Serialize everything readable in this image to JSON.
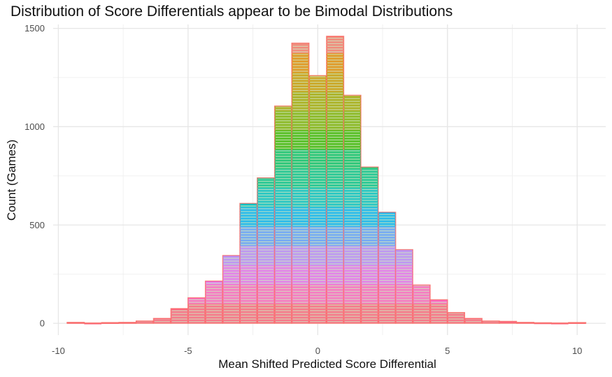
{
  "chart_data": {
    "type": "bar",
    "title": "Distribution of Score Differentials appear to be Bimodal Distributions",
    "xlabel": "Mean Shifted Predicted Score Differential",
    "ylabel": "Count (Games)",
    "xlim": [
      -10.2,
      11.1
    ],
    "ylim": [
      -60,
      1520
    ],
    "x_ticks": [
      "-10",
      "-5",
      "0",
      "5",
      "10"
    ],
    "x_tick_values": [
      -10,
      -5,
      0,
      5,
      10
    ],
    "y_ticks": [
      "0",
      "500",
      "1000",
      "1500"
    ],
    "y_tick_values": [
      0,
      500,
      1000,
      1500
    ],
    "bin_width": 0.667,
    "bin_centers": [
      -9.33,
      -8.67,
      -8.0,
      -7.33,
      -6.67,
      -6.0,
      -5.33,
      -4.67,
      -4.0,
      -3.33,
      -2.67,
      -2.0,
      -1.33,
      -0.67,
      0.0,
      0.67,
      1.33,
      2.0,
      2.67,
      3.33,
      4.0,
      4.67,
      5.33,
      6.0,
      6.67,
      7.33,
      8.0,
      8.67,
      9.33,
      10.0
    ],
    "counts": [
      5,
      2,
      4,
      5,
      12,
      25,
      75,
      130,
      215,
      345,
      610,
      740,
      1105,
      1425,
      1260,
      1460,
      1160,
      795,
      565,
      375,
      195,
      120,
      55,
      25,
      12,
      10,
      5,
      3,
      2,
      4
    ],
    "fill": "#cfe6bf",
    "color_bands": [
      "#ff5f7e",
      "#ff61c3",
      "#e76bf3",
      "#b983ff",
      "#619cff",
      "#00b0f6",
      "#00bfc4",
      "#00c08b",
      "#00be67",
      "#39b600",
      "#7cae00",
      "#a3a500",
      "#c99800",
      "#e58700",
      "#f8766d"
    ],
    "grid": true,
    "legend": "none"
  }
}
